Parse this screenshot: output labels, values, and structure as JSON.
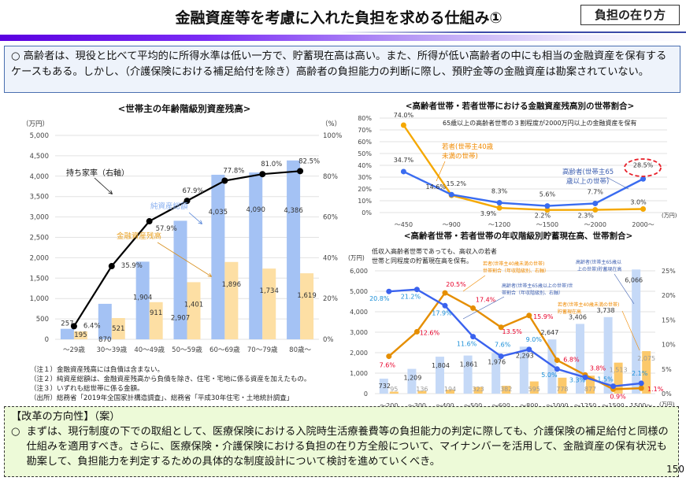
{
  "header": {
    "title": "金融資産等を考慮に入れた負担を求める仕組み①",
    "tag": "負担の在り方"
  },
  "intro": {
    "bullet": "○",
    "text": "高齢者は、現役と比べて平均的に所得水準は低い一方で、貯蓄現在高は高い。また、所得が低い高齢者の中にも相当の金融資産を保有するケースもある。しかし、（介護保険における補足給付を除き）高齢者の負担能力の判断に際し、預貯金等の金融資産は勘案されていない。"
  },
  "notes": [
    "（注１）金融資産残高には負債は含まない。",
    "（注２）純資産総額は、金融資産残高から負債を除き、住宅・宅地に係る資産を加えたもの。",
    "（注３）いずれも総世帯に係る金額。",
    "（出所）総務省「2019年全国家計構造調査」、総務省「平成30年住宅・土地統計調査」"
  ],
  "reform": {
    "heading": "【改革の方向性】（案）",
    "bullet": "○",
    "text": "まずは、現行制度の下での取組として、医療保険における入院時生活療養費等の負担能力の判定に際しても、介護保険の補足給付と同様の仕組みを適用すべき。さらに、医療保険・介護保険における負担の在り方全般について、マイナンバーを活用して、金融資産の保有状況も勘案して、負担能力を判定するための具体的な制度設計について検討を進めていくべき。"
  },
  "page_number": "150",
  "chart_data": [
    {
      "type": "bar",
      "title": "<世帯主の年齢階級別資産残高>",
      "ylabel_left": "（万円）",
      "ylabel_right": "（%）",
      "ylim": [
        0,
        5000
      ],
      "yticks": [
        "0",
        "500",
        "1,000",
        "1,500",
        "2,000",
        "2,500",
        "3,000",
        "3,500",
        "4,000",
        "4,500",
        "5,000"
      ],
      "ylim_right": [
        0,
        100
      ],
      "yticks_right": [
        "0%",
        "20%",
        "40%",
        "60%",
        "80%",
        "100%"
      ],
      "categories": [
        "～29歳",
        "30～39歳",
        "40～49歳",
        "50～59歳",
        "60～69歳",
        "70～79歳",
        "80歳～"
      ],
      "series": [
        {
          "name": "純資産総額",
          "type": "bar",
          "color": "#a4c2f4",
          "values": [
            257,
            870,
            1904,
            2907,
            4035,
            4090,
            4386
          ],
          "labels": [
            "257",
            "870",
            "1,904",
            "2,907",
            "4,035",
            "4,090",
            "4,386"
          ]
        },
        {
          "name": "金融資産残高",
          "type": "bar",
          "color": "#fddfa4",
          "values": [
            195,
            521,
            911,
            1401,
            1896,
            1734,
            1619
          ],
          "labels": [
            "195",
            "521",
            "911",
            "1,401",
            "1,896",
            "1,734",
            "1,619"
          ]
        },
        {
          "name": "持ち家率（右軸）",
          "type": "line",
          "axis": "right",
          "color": "#000000",
          "values": [
            6.4,
            35.9,
            57.9,
            67.9,
            77.8,
            81.0,
            82.5
          ],
          "labels": [
            "6.4%",
            "35.9%",
            "57.9%",
            "67.9%",
            "77.8%",
            "81.0%",
            "82.5%"
          ]
        }
      ],
      "annotations": {
        "line": "持ち家率（右軸）",
        "net": "純資産総額",
        "fin": "金融資産残高"
      },
      "grid": true
    },
    {
      "type": "line",
      "title": "<高齢者世帯・若者世帯における金融資産残高別の世帯割合>",
      "subtitle": "65歳以上の高齢者世帯の３割程度が2000万円以上の金融資産を保有",
      "xunit": "(万円)",
      "categories": [
        "～450",
        "～900",
        "～1200",
        "～1500",
        "～2000",
        "2000～"
      ],
      "ylim": [
        0,
        80
      ],
      "yticks": [
        "0%",
        "10%",
        "20%",
        "30%",
        "40%",
        "50%",
        "60%",
        "70%",
        "80%"
      ],
      "series": [
        {
          "name": "高齢者(世帯主65歳以上の世帯)",
          "color": "#3a6cf0",
          "values": [
            34.7,
            15.2,
            8.3,
            5.6,
            7.7,
            28.5
          ],
          "labels": [
            "34.7%",
            "15.2%",
            "8.3%",
            "5.6%",
            "7.7%",
            "28.5%"
          ]
        },
        {
          "name": "若者(世帯主40歳未満の世帯)",
          "color": "#f5a800",
          "values": [
            74.0,
            14.6,
            3.9,
            2.2,
            2.3,
            3.0
          ],
          "labels": [
            "74.0%",
            "14.6%",
            "3.9%",
            "2.2%",
            "2.3%",
            "3.0%"
          ]
        }
      ],
      "annotations": {
        "elder_1": "高齢者(世帯主65",
        "elder_2": "歳以上の世帯)",
        "young_1": "若者(世帯主40歳",
        "young_2": "未満の世帯)"
      },
      "grid": true
    },
    {
      "type": "bar",
      "title": "<高齢者世帯・若者世帯の年収階級別貯蓄現在高、世帯割合>",
      "subtitle_1": "低収入高齢者世帯であっても、高収入の若者",
      "subtitle_2": "世帯と同程度の貯蓄現在高を保有。",
      "ylabel_left": "(万円)",
      "xunit": "(万円)",
      "ylim": [
        0,
        6000
      ],
      "yticks": [
        "0",
        "1,000",
        "2,000",
        "3,000",
        "4,000",
        "5,000",
        "6,000"
      ],
      "ylim_right": [
        0,
        25
      ],
      "yticks_right": [
        "0%",
        "5%",
        "10%",
        "15%",
        "20%",
        "25%"
      ],
      "categories": [
        "～200",
        "～300",
        "～400",
        "～500",
        "～600",
        "～800",
        "～1000",
        "～1250",
        "～1500",
        "1500～"
      ],
      "series": [
        {
          "name": "高齢者(世帯主65歳以上の世帯)貯蓄現在高",
          "type": "bar",
          "color": "#c5d9f7",
          "values": [
            732,
            1209,
            1804,
            1861,
            1976,
            2293,
            2647,
            3406,
            3738,
            6066
          ],
          "labels": [
            "732",
            "1,209",
            "1,804",
            "1,861",
            "1,976",
            "2,293",
            "2,647",
            "3,406",
            "3,738",
            "6,066"
          ]
        },
        {
          "name": "若者(世帯主40歳未満の世帯)貯蓄現在高",
          "type": "bar",
          "color": "#fcc96b",
          "values": [
            95,
            136,
            194,
            323,
            382,
            595,
            778,
            877,
            1513,
            2075
          ],
          "labels": [
            "95",
            "136",
            "194",
            "323",
            "382",
            "595",
            "778",
            "877",
            "1,513",
            "2,075"
          ]
        },
        {
          "name": "高齢者(世帯主65歳以上の世帯)世帯割合（年収階級別、右軸）",
          "type": "line",
          "axis": "right",
          "color": "#3a62ee",
          "label_color": "#1a8fd8",
          "values": [
            20.8,
            21.2,
            17.9,
            11.6,
            7.6,
            9.0,
            5.0,
            3.3,
            1.5,
            2.1
          ],
          "labels": [
            "20.8%",
            "21.2%",
            "17.9%",
            "11.6%",
            "7.6%",
            "9.0%",
            "5.0%",
            "3.3%",
            "1.5%",
            "2.1%"
          ]
        },
        {
          "name": "若者(世帯主40歳未満の世帯)世帯割合（年収階級別、右軸）",
          "type": "line",
          "axis": "right",
          "color": "#e58e00",
          "label_color": "#e8002a",
          "values": [
            7.6,
            12.6,
            20.5,
            17.4,
            13.5,
            15.9,
            6.8,
            3.8,
            0.9,
            1.1
          ],
          "labels": [
            "7.6%",
            "12.6%",
            "20.5%",
            "17.4%",
            "13.5%",
            "15.9%",
            "6.8%",
            "3.8%",
            "0.9%",
            "1.1%"
          ]
        }
      ],
      "annotations": {
        "young_rate_1": "若者(世帯主40歳未満の世帯)",
        "young_rate_2": "世帯割合（年収階級別、右軸）",
        "elder_save_1": "高齢者(世帯主65歳以",
        "elder_save_2": "上の世帯)貯蓄現在高",
        "elder_rate_1": "高齢者(世帯主65歳以上の世帯)世",
        "elder_rate_2": "帯割合（年収階級別、右軸）",
        "young_save_1": "若者(世帯主40歳未満の世帯)",
        "young_save_2": "貯蓄現在高"
      },
      "grid": true
    }
  ]
}
